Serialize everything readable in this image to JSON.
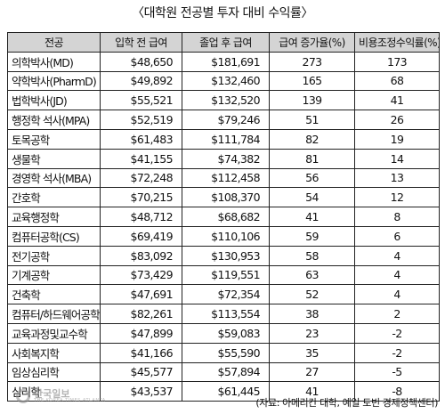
{
  "title": "〈대학원 전공별 투자 대비 수익률〉",
  "table": {
    "headers": [
      "전공",
      "입학 전 급여",
      "졸업 후 급여",
      "급여 증가율(%)",
      "비용조정수익률(%)"
    ],
    "rows": [
      [
        "의학박사(MD)",
        "$48,650",
        "$181,691",
        "273",
        "173"
      ],
      [
        "약학박사(PharmD)",
        "$49,892",
        "$132,460",
        "165",
        "68"
      ],
      [
        "법학박사(JD)",
        "$55,521",
        "$132,520",
        "139",
        "41"
      ],
      [
        "행정학 석사(MPA)",
        "$52,519",
        "$79,246",
        "51",
        "26"
      ],
      [
        "토목공학",
        "$61,483",
        "$111,784",
        "82",
        "19"
      ],
      [
        "생물학",
        "$41,155",
        "$74,382",
        "81",
        "14"
      ],
      [
        "경영학 석사(MBA)",
        "$72,248",
        "$112,458",
        "56",
        "13"
      ],
      [
        "간호학",
        "$70,215",
        "$108,370",
        "54",
        "12"
      ],
      [
        "교육행정학",
        "$48,712",
        "$68,682",
        "41",
        "8"
      ],
      [
        "컴퓨터공학(CS)",
        "$69,419",
        "$110,106",
        "59",
        "6"
      ],
      [
        "전기공학",
        "$83,092",
        "$130,953",
        "58",
        "4"
      ],
      [
        "기계공학",
        "$73,429",
        "$119,551",
        "63",
        "4"
      ],
      [
        "건축학",
        "$47,691",
        "$72,354",
        "52",
        "4"
      ],
      [
        "컴퓨터/하드웨어공학",
        "$82,261",
        "$113,554",
        "38",
        "2"
      ],
      [
        "교육과정및교수학",
        "$47,899",
        "$59,083",
        "23",
        "-2"
      ],
      [
        "사회복지학",
        "$41,166",
        "$55,590",
        "35",
        "-2"
      ],
      [
        "임상심리학",
        "$45,577",
        "$57,894",
        "27",
        "-5"
      ],
      [
        "심리학",
        "$43,537",
        "$61,445",
        "41",
        "-8"
      ]
    ]
  },
  "source": "(자료: 아메리칸 대학, 예일 토빈 경제정책센터)",
  "watermark": {
    "main": "한국일보",
    "sub": "THE KOREA TIMES ATLANTA"
  }
}
